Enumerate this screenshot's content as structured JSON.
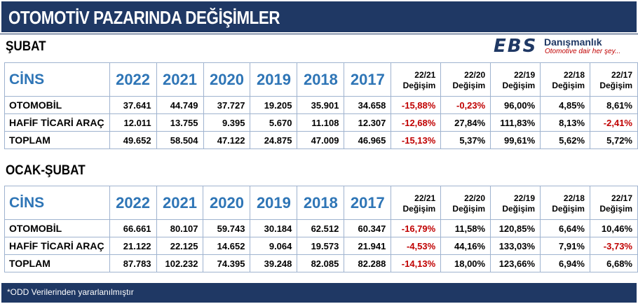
{
  "title": "OTOMOTİV PAZARINDA DEĞİŞİMLER",
  "logo": {
    "ebs": "EBS",
    "name": "Danışmanlık",
    "slogan": "Otomotive dair her şey..."
  },
  "header": {
    "cins": "CİNS",
    "years": [
      "2022",
      "2021",
      "2020",
      "2019",
      "2018",
      "2017"
    ],
    "changes": [
      {
        "period": "22/21",
        "label": "Değişim"
      },
      {
        "period": "22/20",
        "label": "Değişim"
      },
      {
        "period": "22/19",
        "label": "Değişim"
      },
      {
        "period": "22/18",
        "label": "Değişim"
      },
      {
        "period": "22/17",
        "label": "Değişim"
      }
    ]
  },
  "sections": [
    {
      "title": "ŞUBAT",
      "rows": [
        {
          "label": "OTOMOBİL",
          "values": [
            "37.641",
            "44.749",
            "37.727",
            "19.205",
            "35.901",
            "34.658"
          ],
          "changes": [
            "-15,88%",
            "-0,23%",
            "96,00%",
            "4,85%",
            "8,61%"
          ]
        },
        {
          "label": "HAFİF TİCARİ ARAÇ",
          "values": [
            "12.011",
            "13.755",
            "9.395",
            "5.670",
            "11.108",
            "12.307"
          ],
          "changes": [
            "-12,68%",
            "27,84%",
            "111,83%",
            "8,13%",
            "-2,41%"
          ]
        },
        {
          "label": "TOPLAM",
          "values": [
            "49.652",
            "58.504",
            "47.122",
            "24.875",
            "47.009",
            "46.965"
          ],
          "changes": [
            "-15,13%",
            "5,37%",
            "99,61%",
            "5,62%",
            "5,72%"
          ]
        }
      ]
    },
    {
      "title": "OCAK-ŞUBAT",
      "rows": [
        {
          "label": "OTOMOBİL",
          "values": [
            "66.661",
            "80.107",
            "59.743",
            "30.184",
            "62.512",
            "60.347"
          ],
          "changes": [
            "-16,79%",
            "11,58%",
            "120,85%",
            "6,64%",
            "10,46%"
          ]
        },
        {
          "label": "HAFİF TİCARİ ARAÇ",
          "values": [
            "21.122",
            "22.125",
            "14.652",
            "9.064",
            "19.573",
            "21.941"
          ],
          "changes": [
            "-4,53%",
            "44,16%",
            "133,03%",
            "7,91%",
            "-3,73%"
          ]
        },
        {
          "label": "TOPLAM",
          "values": [
            "87.783",
            "102.232",
            "74.395",
            "39.248",
            "82.085",
            "82.288"
          ],
          "changes": [
            "-14,13%",
            "18,00%",
            "123,66%",
            "6,94%",
            "6,68%"
          ]
        }
      ]
    }
  ],
  "footer": "*ODD Verilerinden yararlanılmıştır",
  "colors": {
    "navy": "#1f3864",
    "blue_text": "#2e75b6",
    "negative": "#c00000",
    "grid": "#9fb3cf"
  }
}
